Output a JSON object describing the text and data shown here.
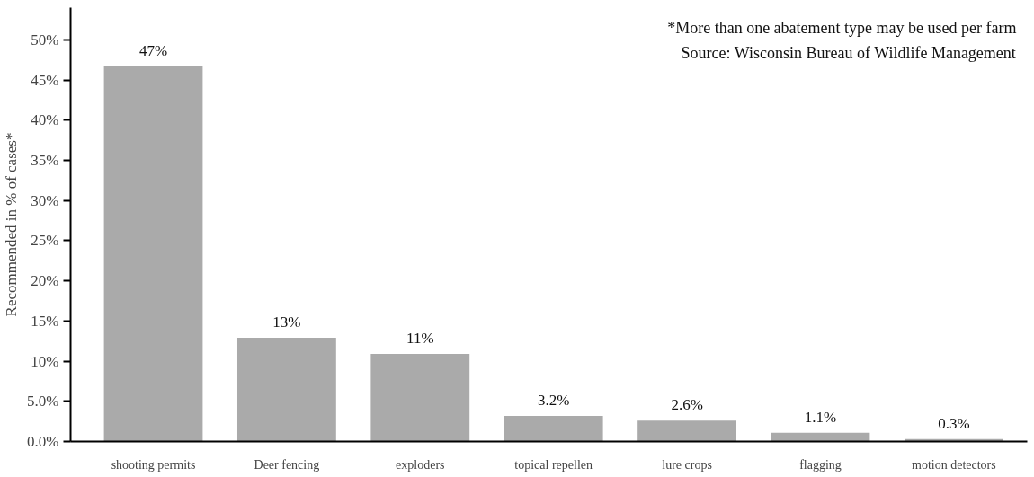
{
  "chart_data": {
    "type": "bar",
    "categories": [
      "shooting permits",
      "Deer fencing",
      "exploders",
      "topical repellen",
      "lure crops",
      "flagging",
      "motion detectors"
    ],
    "values": [
      46.7,
      12.9,
      10.9,
      3.2,
      2.6,
      1.1,
      0.3
    ],
    "value_labels": [
      "47%",
      "13%",
      "11%",
      "3.2%",
      "2.6%",
      "1.1%",
      "0.3%"
    ],
    "color": "#aaaaaa",
    "ylabel": "Recommended in % of cases*",
    "ylim": [
      0,
      54
    ],
    "yticks": [
      {
        "value": 0,
        "label": "0.0%"
      },
      {
        "value": 5,
        "label": "5.0%"
      },
      {
        "value": 10,
        "label": "10%"
      },
      {
        "value": 15,
        "label": "15%"
      },
      {
        "value": 20,
        "label": "20%"
      },
      {
        "value": 25,
        "label": "25%"
      },
      {
        "value": 30,
        "label": "30%"
      },
      {
        "value": 35,
        "label": "35%"
      },
      {
        "value": 40,
        "label": "40%"
      },
      {
        "value": 45,
        "label": "45%"
      },
      {
        "value": 50,
        "label": "50%"
      }
    ],
    "annotations": [
      "*More than one abatement type may be used per farm",
      "Source: Wisconsin Bureau of Wildlife Management"
    ],
    "grid": false
  }
}
